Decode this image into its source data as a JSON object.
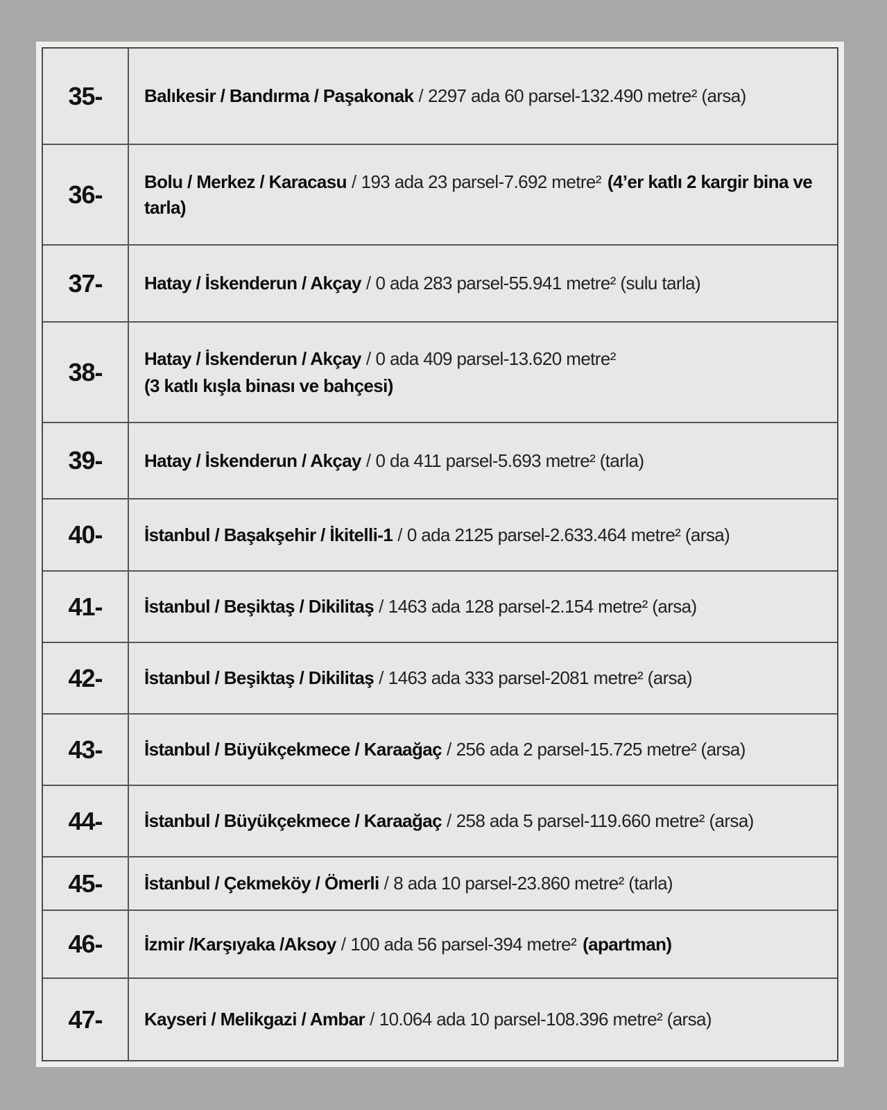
{
  "page": {
    "background_color": "#a9a9a9",
    "panel_color": "#eeeeec",
    "cell_color": "#e7e7e5",
    "border_color": "#4a4a4a",
    "text_color": "#121212"
  },
  "separator": "/",
  "rows": [
    {
      "num": "35-",
      "location": "Balıkesir / Bandırma / Paşakonak",
      "details": "2297 ada 60 parsel-132.490 metre² (arsa)",
      "details_bold": "",
      "line2_bold": ""
    },
    {
      "num": "36-",
      "location": "Bolu / Merkez / Karacasu",
      "details": "193 ada 23 parsel-7.692 metre²",
      "details_bold": "(4’er katlı 2 kargir bina ve tarla)",
      "line2_bold": ""
    },
    {
      "num": "37-",
      "location": "Hatay / İskenderun / Akçay",
      "details": "0 ada 283 parsel-55.941 metre² (sulu tarla)",
      "details_bold": "",
      "line2_bold": ""
    },
    {
      "num": "38-",
      "location": "Hatay / İskenderun / Akçay",
      "details": "0 ada 409 parsel-13.620 metre²",
      "details_bold": "",
      "line2_bold": "(3 katlı kışla binası ve bahçesi)"
    },
    {
      "num": "39-",
      "location": "Hatay / İskenderun / Akçay",
      "details": "0 da 411 parsel-5.693 metre² (tarla)",
      "details_bold": "",
      "line2_bold": ""
    },
    {
      "num": "40-",
      "location": "İstanbul / Başakşehir / İkitelli-1",
      "details": "0 ada 2125 parsel-2.633.464 metre² (arsa)",
      "details_bold": "",
      "line2_bold": ""
    },
    {
      "num": "41-",
      "location": "İstanbul / Beşiktaş / Dikilitaş",
      "details": "1463 ada 128 parsel-2.154 metre² (arsa)",
      "details_bold": "",
      "line2_bold": ""
    },
    {
      "num": "42-",
      "location": "İstanbul / Beşiktaş / Dikilitaş",
      "details": "1463 ada 333 parsel-2081 metre² (arsa)",
      "details_bold": "",
      "line2_bold": ""
    },
    {
      "num": "43-",
      "location": "İstanbul / Büyükçekmece / Karaağaç",
      "details": "256 ada 2 parsel-15.725 metre² (arsa)",
      "details_bold": "",
      "line2_bold": ""
    },
    {
      "num": "44-",
      "location": "İstanbul / Büyükçekmece / Karaağaç",
      "details": "258 ada 5 parsel-119.660 metre² (arsa)",
      "details_bold": "",
      "line2_bold": ""
    },
    {
      "num": "45-",
      "location": "İstanbul / Çekmeköy / Ömerli",
      "details": "8 ada 10 parsel-23.860 metre² (tarla)",
      "details_bold": "",
      "line2_bold": ""
    },
    {
      "num": "46-",
      "location": "İzmir /Karşıyaka /Aksoy",
      "details": "100 ada 56 parsel-394 metre²",
      "details_bold": "(apartman)",
      "line2_bold": ""
    },
    {
      "num": "47-",
      "location": "Kayseri / Melikgazi / Ambar",
      "details": "10.064 ada 10 parsel-108.396 metre² (arsa)",
      "details_bold": "",
      "line2_bold": ""
    }
  ]
}
